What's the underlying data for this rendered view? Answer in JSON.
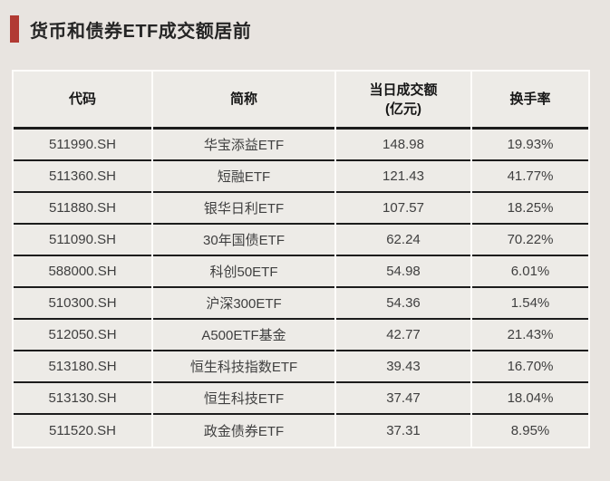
{
  "title": "货币和债券ETF成交额居前",
  "colors": {
    "accent_red": "#b13a33",
    "page_background": "#e8e4e0",
    "cell_background": "#edebe7",
    "grid_white": "#fdfcfa",
    "line_dark": "#1c1c1c"
  },
  "chart_data": {
    "type": "table",
    "title": "货币和债券ETF成交额居前",
    "columns": [
      "代码",
      "简称",
      "当日成交额\n(亿元)",
      "换手率"
    ],
    "rows": [
      [
        "511990.SH",
        "华宝添益ETF",
        "148.98",
        "19.93%"
      ],
      [
        "511360.SH",
        "短融ETF",
        "121.43",
        "41.77%"
      ],
      [
        "511880.SH",
        "银华日利ETF",
        "107.57",
        "18.25%"
      ],
      [
        "511090.SH",
        "30年国债ETF",
        "62.24",
        "70.22%"
      ],
      [
        "588000.SH",
        "科创50ETF",
        "54.98",
        "6.01%"
      ],
      [
        "510300.SH",
        "沪深300ETF",
        "54.36",
        "1.54%"
      ],
      [
        "512050.SH",
        "A500ETF基金",
        "42.77",
        "21.43%"
      ],
      [
        "513180.SH",
        "恒生科技指数ETF",
        "39.43",
        "16.70%"
      ],
      [
        "513130.SH",
        "恒生科技ETF",
        "37.47",
        "18.04%"
      ],
      [
        "511520.SH",
        "政金债券ETF",
        "37.31",
        "8.95%"
      ]
    ]
  }
}
